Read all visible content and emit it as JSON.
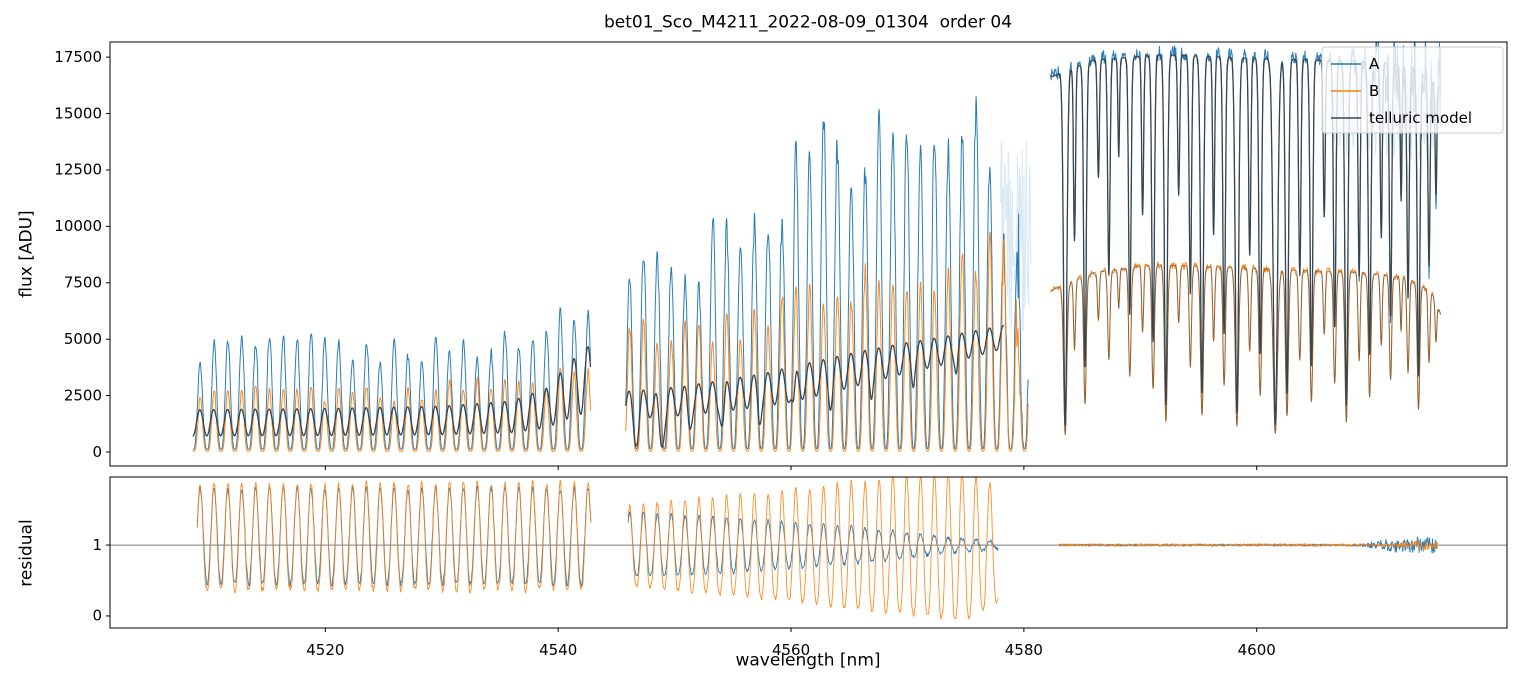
{
  "chart_data": {
    "type": "line",
    "title": "bet01_Sco_M4211_2022-08-09_01304  order 04",
    "xlabel": "wavelength [nm]",
    "xlim": [
      4501.5,
      4621.5
    ],
    "xticks": [
      4520,
      4540,
      4560,
      4580,
      4600
    ],
    "panels": [
      {
        "ylabel": "flux [ADU]",
        "ylim": [
          -620,
          18170
        ],
        "yticks": [
          0,
          2500,
          5000,
          7500,
          10000,
          12500,
          15000,
          17500
        ]
      },
      {
        "ylabel": "residual",
        "ylim": [
          -0.17,
          1.96
        ],
        "yticks": [
          0,
          1
        ],
        "hline": 1
      }
    ],
    "legend": {
      "position": "upper right",
      "entries": [
        {
          "label": "A",
          "color": "#1f77b4"
        },
        {
          "label": "B",
          "color": "#ff7f0e"
        },
        {
          "label": "telluric model",
          "color": "#36454f"
        }
      ]
    },
    "colors": {
      "A": "#1f77b4",
      "B": "#ff7f0e",
      "model": "#36454f",
      "pale": "#a8cde6",
      "refline": "#7a7a7a"
    },
    "segments_nm": [
      [
        4508.6,
        4542.8
      ],
      [
        4545.8,
        4580.4
      ],
      [
        4582.3,
        4615.8
      ]
    ],
    "synthesis": {
      "sample_step": 0.025,
      "fringe_period": 1.19,
      "fringe_ref": 4508.95,
      "model_s2_end": 4578.3,
      "envelopes": {
        "A_s1": [
          [
            4508.6,
            4100
          ],
          [
            4512,
            4650
          ],
          [
            4516,
            4250
          ],
          [
            4520,
            4450
          ],
          [
            4524,
            4250
          ],
          [
            4528,
            4650
          ],
          [
            4532,
            4450
          ],
          [
            4536,
            4750
          ],
          [
            4539,
            5100
          ],
          [
            4540.8,
            6600
          ],
          [
            4542.8,
            7700
          ]
        ],
        "B_s1": [
          [
            4508.6,
            2450
          ],
          [
            4514,
            2620
          ],
          [
            4520,
            2560
          ],
          [
            4526,
            2700
          ],
          [
            4532,
            2780
          ],
          [
            4537,
            3050
          ],
          [
            4540,
            3350
          ],
          [
            4542.8,
            3800
          ]
        ],
        "M_s1": [
          [
            4508.6,
            1290
          ],
          [
            4520,
            1330
          ],
          [
            4530,
            1400
          ],
          [
            4536,
            1560
          ],
          [
            4539,
            1950
          ],
          [
            4541,
            2750
          ],
          [
            4542.8,
            3300
          ]
        ],
        "A_s2": [
          [
            4545.8,
            7400
          ],
          [
            4549,
            8100
          ],
          [
            4552,
            8700
          ],
          [
            4555,
            9500
          ],
          [
            4558,
            10700
          ],
          [
            4561,
            11900
          ],
          [
            4564,
            13200
          ],
          [
            4566,
            13900
          ],
          [
            4568,
            12700
          ],
          [
            4570,
            13100
          ],
          [
            4572,
            14000
          ],
          [
            4574,
            12900
          ],
          [
            4576,
            13300
          ],
          [
            4577.5,
            11200
          ],
          [
            4579,
            9200
          ],
          [
            4580.4,
            7200
          ]
        ],
        "B_s2": [
          [
            4545.8,
            4950
          ],
          [
            4551,
            5350
          ],
          [
            4556,
            5750
          ],
          [
            4561,
            6350
          ],
          [
            4566,
            6950
          ],
          [
            4571,
            7650
          ],
          [
            4575,
            8350
          ],
          [
            4577.5,
            8000
          ],
          [
            4579.5,
            7100
          ],
          [
            4580.4,
            6500
          ]
        ],
        "M_s2": [
          [
            4545.8,
            2080
          ],
          [
            4550,
            2230
          ],
          [
            4554,
            2480
          ],
          [
            4558,
            2780
          ],
          [
            4562,
            3230
          ],
          [
            4566,
            3720
          ],
          [
            4570,
            4180
          ],
          [
            4573,
            4480
          ],
          [
            4576,
            4830
          ],
          [
            4578.3,
            5100
          ]
        ],
        "A_s3": [
          [
            4582.3,
            16700
          ],
          [
            4586,
            17450
          ],
          [
            4592,
            17700
          ],
          [
            4599,
            17550
          ],
          [
            4606,
            17450
          ],
          [
            4611,
            17350
          ],
          [
            4613.5,
            17100
          ],
          [
            4615.8,
            16200
          ]
        ],
        "B_s3": [
          [
            4582.3,
            7150
          ],
          [
            4586,
            7950
          ],
          [
            4591,
            8300
          ],
          [
            4597,
            8200
          ],
          [
            4603,
            8060
          ],
          [
            4609,
            7960
          ],
          [
            4613,
            7700
          ],
          [
            4615,
            7100
          ],
          [
            4615.8,
            6100
          ]
        ]
      },
      "ampM2": [
        [
          4546,
          0.3
        ],
        [
          4560,
          0.26
        ],
        [
          4570,
          0.16
        ],
        [
          4578.3,
          0.1
        ]
      ],
      "lines2": [
        [
          4546.7,
          0.82,
          0.28
        ],
        [
          4548.9,
          0.88,
          0.3
        ],
        [
          4551.3,
          0.45,
          0.22
        ],
        [
          4554.1,
          0.5,
          0.22
        ],
        [
          4557.3,
          0.42,
          0.2
        ],
        [
          4560.2,
          0.34,
          0.2
        ],
        [
          4563.4,
          0.3,
          0.2
        ],
        [
          4566.9,
          0.25,
          0.18
        ],
        [
          4570.5,
          0.2,
          0.16
        ],
        [
          4574.2,
          0.16,
          0.15
        ]
      ],
      "lines3": [
        [
          4583.55,
          0.93,
          0.2
        ],
        [
          4584.35,
          0.45,
          0.12
        ],
        [
          4585.25,
          0.78,
          0.16
        ],
        [
          4586.4,
          0.3,
          0.12
        ],
        [
          4587.3,
          0.55,
          0.14
        ],
        [
          4588.15,
          0.25,
          0.1
        ],
        [
          4589.1,
          0.65,
          0.15
        ],
        [
          4590.2,
          0.4,
          0.12
        ],
        [
          4591.1,
          0.72,
          0.16
        ],
        [
          4592.2,
          0.88,
          0.18
        ],
        [
          4593.3,
          0.35,
          0.12
        ],
        [
          4594.3,
          0.6,
          0.14
        ],
        [
          4595.3,
          0.85,
          0.18
        ],
        [
          4596.3,
          0.45,
          0.12
        ],
        [
          4597.2,
          0.7,
          0.15
        ],
        [
          4598.3,
          0.9,
          0.2
        ],
        [
          4599.4,
          0.5,
          0.13
        ],
        [
          4600.3,
          0.75,
          0.16
        ],
        [
          4601.6,
          0.93,
          0.26
        ],
        [
          4602.6,
          0.85,
          0.18
        ],
        [
          4603.7,
          0.55,
          0.14
        ],
        [
          4604.7,
          0.78,
          0.16
        ],
        [
          4605.8,
          0.4,
          0.12
        ],
        [
          4606.7,
          0.68,
          0.15
        ],
        [
          4607.7,
          0.88,
          0.18
        ],
        [
          4608.8,
          0.55,
          0.13
        ],
        [
          4609.7,
          0.75,
          0.16
        ],
        [
          4610.7,
          0.45,
          0.12
        ],
        [
          4611.5,
          0.65,
          0.14
        ],
        [
          4612.4,
          0.35,
          0.1
        ],
        [
          4613.0,
          0.6,
          0.14
        ],
        [
          4613.9,
          0.8,
          0.16
        ],
        [
          4614.8,
          0.5,
          0.12
        ],
        [
          4615.4,
          0.3,
          0.1
        ]
      ],
      "resid_ampA2": [
        [
          4546,
          0.45
        ],
        [
          4554,
          0.4
        ],
        [
          4562,
          0.3
        ],
        [
          4568,
          0.22
        ],
        [
          4573,
          0.12
        ],
        [
          4577.8,
          0.05
        ]
      ],
      "resid_ampB2": [
        [
          4546,
          0.55
        ],
        [
          4552,
          0.65
        ],
        [
          4560,
          0.78
        ],
        [
          4566,
          0.9
        ],
        [
          4571,
          1.0
        ],
        [
          4575,
          1.05
        ],
        [
          4577.8,
          0.8
        ]
      ],
      "band_right": {
        "x0": 4606.5,
        "x1": 4615.8,
        "mid": 15300,
        "amp": 2400
      },
      "band_seg2end": {
        "x0": 4578.0,
        "x1": 4580.6,
        "mid": 9500,
        "amp": 4300
      }
    }
  }
}
